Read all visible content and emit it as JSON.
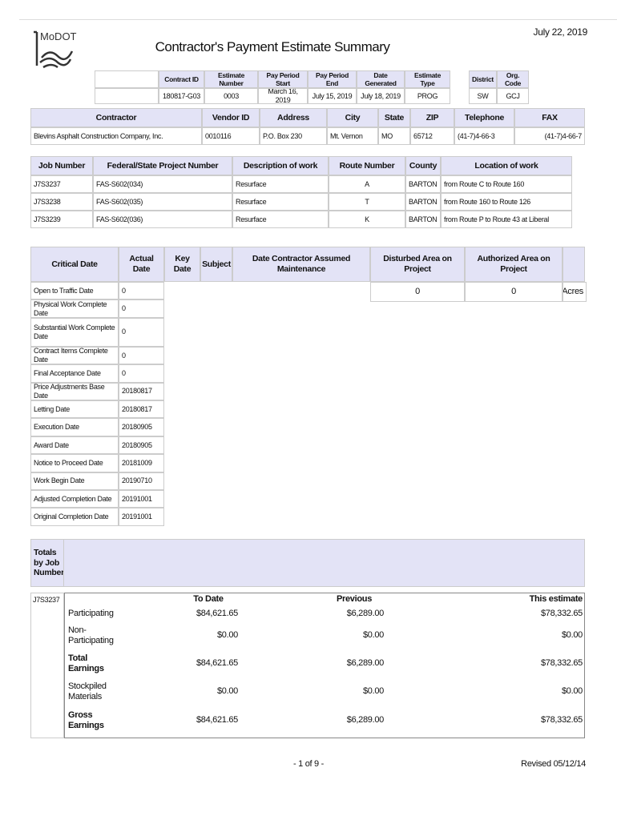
{
  "header": {
    "logo": "MoDOT",
    "title": "Contractor's Payment Estimate Summary",
    "date": "July 22, 2019"
  },
  "contract": {
    "headers": [
      "Contract ID",
      "Estimate Number",
      "Pay Period Start",
      "Pay Period End",
      "Date Generated",
      "Estimate Type"
    ],
    "values": [
      "180817-G03",
      "0003",
      "March 16, 2019",
      "July 15, 2019",
      "July 18, 2019",
      "PROG"
    ],
    "district_headers": [
      "District",
      "Org. Code"
    ],
    "district_values": [
      "SW",
      "GCJ"
    ]
  },
  "contractor": {
    "headers": [
      "Contractor",
      "Vendor ID",
      "Address",
      "City",
      "State",
      "ZIP",
      "Telephone",
      "FAX"
    ],
    "row": [
      "Blevins Asphalt Construction Company, Inc.",
      "0010116",
      "P.O. Box 230",
      "Mt. Vernon",
      "MO",
      "65712",
      "(41-7)4-66-3",
      "(41-7)4-66-7"
    ]
  },
  "jobs": {
    "headers": [
      "Job Number",
      "Federal/State Project Number",
      "Description of work",
      "Route Number",
      "County",
      "Location of work"
    ],
    "rows": [
      [
        "J7S3237",
        "FAS-S602(034)",
        "Resurface",
        "A",
        "BARTON",
        "from Route C to Route 160"
      ],
      [
        "J7S3238",
        "FAS-S602(035)",
        "Resurface",
        "T",
        "BARTON",
        "from Route 160 to Route 126"
      ],
      [
        "J7S3239",
        "FAS-S602(036)",
        "Resurface",
        "K",
        "BARTON",
        "from Route P to Route 43 at Liberal"
      ]
    ]
  },
  "dates": {
    "headers": [
      "Critical Date",
      "Actual Date",
      "Key Date",
      "Subject",
      "Date Contractor Assumed Maintenance"
    ],
    "rows": [
      [
        "Open to Traffic Date",
        "0"
      ],
      [
        "Physical Work Complete Date",
        "0"
      ],
      [
        "Substantial Work Complete Date",
        "0"
      ],
      [
        "Contract Items Complete Date",
        "0"
      ],
      [
        "Final Acceptance Date",
        "0"
      ],
      [
        "Price Adjustments Base Date",
        "20180817"
      ],
      [
        "Letting Date",
        "20180817"
      ],
      [
        "Execution Date",
        "20180905"
      ],
      [
        "Award Date",
        "20180905"
      ],
      [
        "Notice to Proceed Date",
        "20181009"
      ],
      [
        "Work Begin Date",
        "20190710"
      ],
      [
        "Adjusted Completion Date",
        "20191001"
      ],
      [
        "Original Completion Date",
        "20191001"
      ]
    ]
  },
  "area": {
    "headers": [
      "Disturbed Area on Project",
      "Authorized Area on Project"
    ],
    "values": [
      "0",
      "0"
    ],
    "unit": "Acres"
  },
  "totals": {
    "header": "Totals by Job Number",
    "job": "J7S3237",
    "columns": [
      "To Date",
      "Previous",
      "This estimate"
    ],
    "rows": [
      {
        "label": "Participating",
        "values": [
          "$84,621.65",
          "$6,289.00",
          "$78,332.65"
        ]
      },
      {
        "label": "Non-Participating",
        "values": [
          "$0.00",
          "$0.00",
          "$0.00"
        ]
      },
      {
        "label": "Total Earnings",
        "values": [
          "$84,621.65",
          "$6,289.00",
          "$78,332.65"
        ]
      },
      {
        "label": "Stockpiled Materials",
        "values": [
          "$0.00",
          "$0.00",
          "$0.00"
        ]
      },
      {
        "label": "Gross Earnings",
        "values": [
          "$84,621.65",
          "$6,289.00",
          "$78,332.65"
        ]
      }
    ]
  },
  "footer": {
    "page": "- 1 of 9 -",
    "revised": "Revised 05/12/14"
  }
}
